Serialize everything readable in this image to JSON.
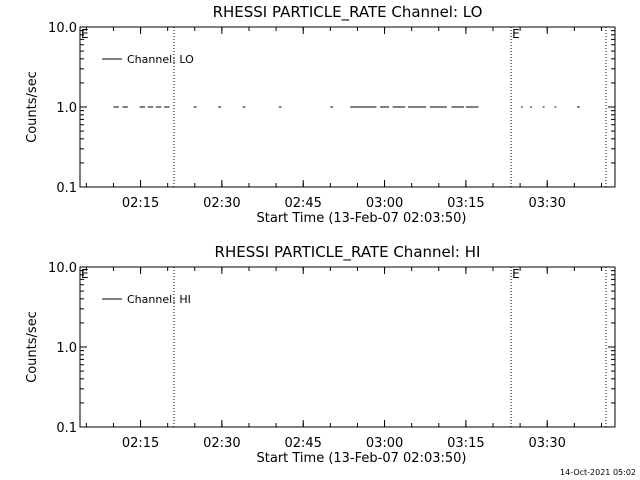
{
  "footer": "14-Oct-2021 05:02",
  "chart_data": [
    {
      "type": "line",
      "title": "RHESSI PARTICLE_RATE Channel: LO",
      "xlabel": "Start Time (13-Feb-07 02:03:50)",
      "ylabel": "Counts/sec",
      "y_scale": "log",
      "ylim": [
        0.1,
        10.0
      ],
      "y_ticks": [
        "10.0",
        "1.0",
        "0.1"
      ],
      "xlim": [
        "02:03:50",
        "03:42:30"
      ],
      "x_ticks": [
        "02:15",
        "02:30",
        "02:45",
        "03:00",
        "03:15",
        "03:30"
      ],
      "legend": {
        "position": "top-left",
        "entries": [
          "Channel: LO"
        ]
      },
      "flags": [
        {
          "label": "E",
          "time": "02:03:50"
        },
        {
          "label": "E",
          "time": "03:23:20"
        }
      ],
      "vlines": [
        "02:21:10",
        "03:23:20",
        "03:40:50"
      ],
      "series": [
        {
          "name": "Channel: LO",
          "segments": [
            {
              "start": "02:10:00",
              "end": "02:11:00",
              "y": 1.0
            },
            {
              "start": "02:11:40",
              "end": "02:12:40",
              "y": 1.0
            },
            {
              "start": "02:14:50",
              "end": "02:15:50",
              "y": 1.0
            },
            {
              "start": "02:16:20",
              "end": "02:17:20",
              "y": 1.0
            },
            {
              "start": "02:17:50",
              "end": "02:18:50",
              "y": 1.0
            },
            {
              "start": "02:19:20",
              "end": "02:20:20",
              "y": 1.0
            },
            {
              "start": "02:24:50",
              "end": "02:25:20",
              "y": 1.0
            },
            {
              "start": "02:29:20",
              "end": "02:29:50",
              "y": 1.0
            },
            {
              "start": "02:33:50",
              "end": "02:34:20",
              "y": 1.0
            },
            {
              "start": "02:40:30",
              "end": "02:41:00",
              "y": 1.0
            },
            {
              "start": "02:50:00",
              "end": "02:50:30",
              "y": 1.0
            },
            {
              "start": "02:53:40",
              "end": "02:58:30",
              "y": 1.0
            },
            {
              "start": "02:59:10",
              "end": "03:00:50",
              "y": 1.0
            },
            {
              "start": "03:01:30",
              "end": "03:03:50",
              "y": 1.0
            },
            {
              "start": "03:04:20",
              "end": "03:07:40",
              "y": 1.0
            },
            {
              "start": "03:08:20",
              "end": "03:11:30",
              "y": 1.0
            },
            {
              "start": "03:12:20",
              "end": "03:14:40",
              "y": 1.0
            },
            {
              "start": "03:15:00",
              "end": "03:17:20",
              "y": 1.0
            },
            {
              "start": "03:25:10",
              "end": "03:25:30",
              "y": 1.0
            },
            {
              "start": "03:26:50",
              "end": "03:27:10",
              "y": 1.0
            },
            {
              "start": "03:29:10",
              "end": "03:29:30",
              "y": 1.0
            },
            {
              "start": "03:31:20",
              "end": "03:31:40",
              "y": 1.0
            },
            {
              "start": "03:35:30",
              "end": "03:36:00",
              "y": 1.0
            }
          ]
        }
      ]
    },
    {
      "type": "line",
      "title": "RHESSI PARTICLE_RATE Channel: HI",
      "xlabel": "Start Time (13-Feb-07 02:03:50)",
      "ylabel": "Counts/sec",
      "y_scale": "log",
      "ylim": [
        0.1,
        10.0
      ],
      "y_ticks": [
        "10.0",
        "1.0",
        "0.1"
      ],
      "xlim": [
        "02:03:50",
        "03:42:30"
      ],
      "x_ticks": [
        "02:15",
        "02:30",
        "02:45",
        "03:00",
        "03:15",
        "03:30"
      ],
      "legend": {
        "position": "top-left",
        "entries": [
          "Channel: HI"
        ]
      },
      "flags": [
        {
          "label": "E",
          "time": "02:03:50"
        },
        {
          "label": "E",
          "time": "03:23:20"
        }
      ],
      "vlines": [
        "02:21:10",
        "03:23:20",
        "03:40:50"
      ],
      "series": [
        {
          "name": "Channel: HI",
          "segments": []
        }
      ]
    }
  ]
}
